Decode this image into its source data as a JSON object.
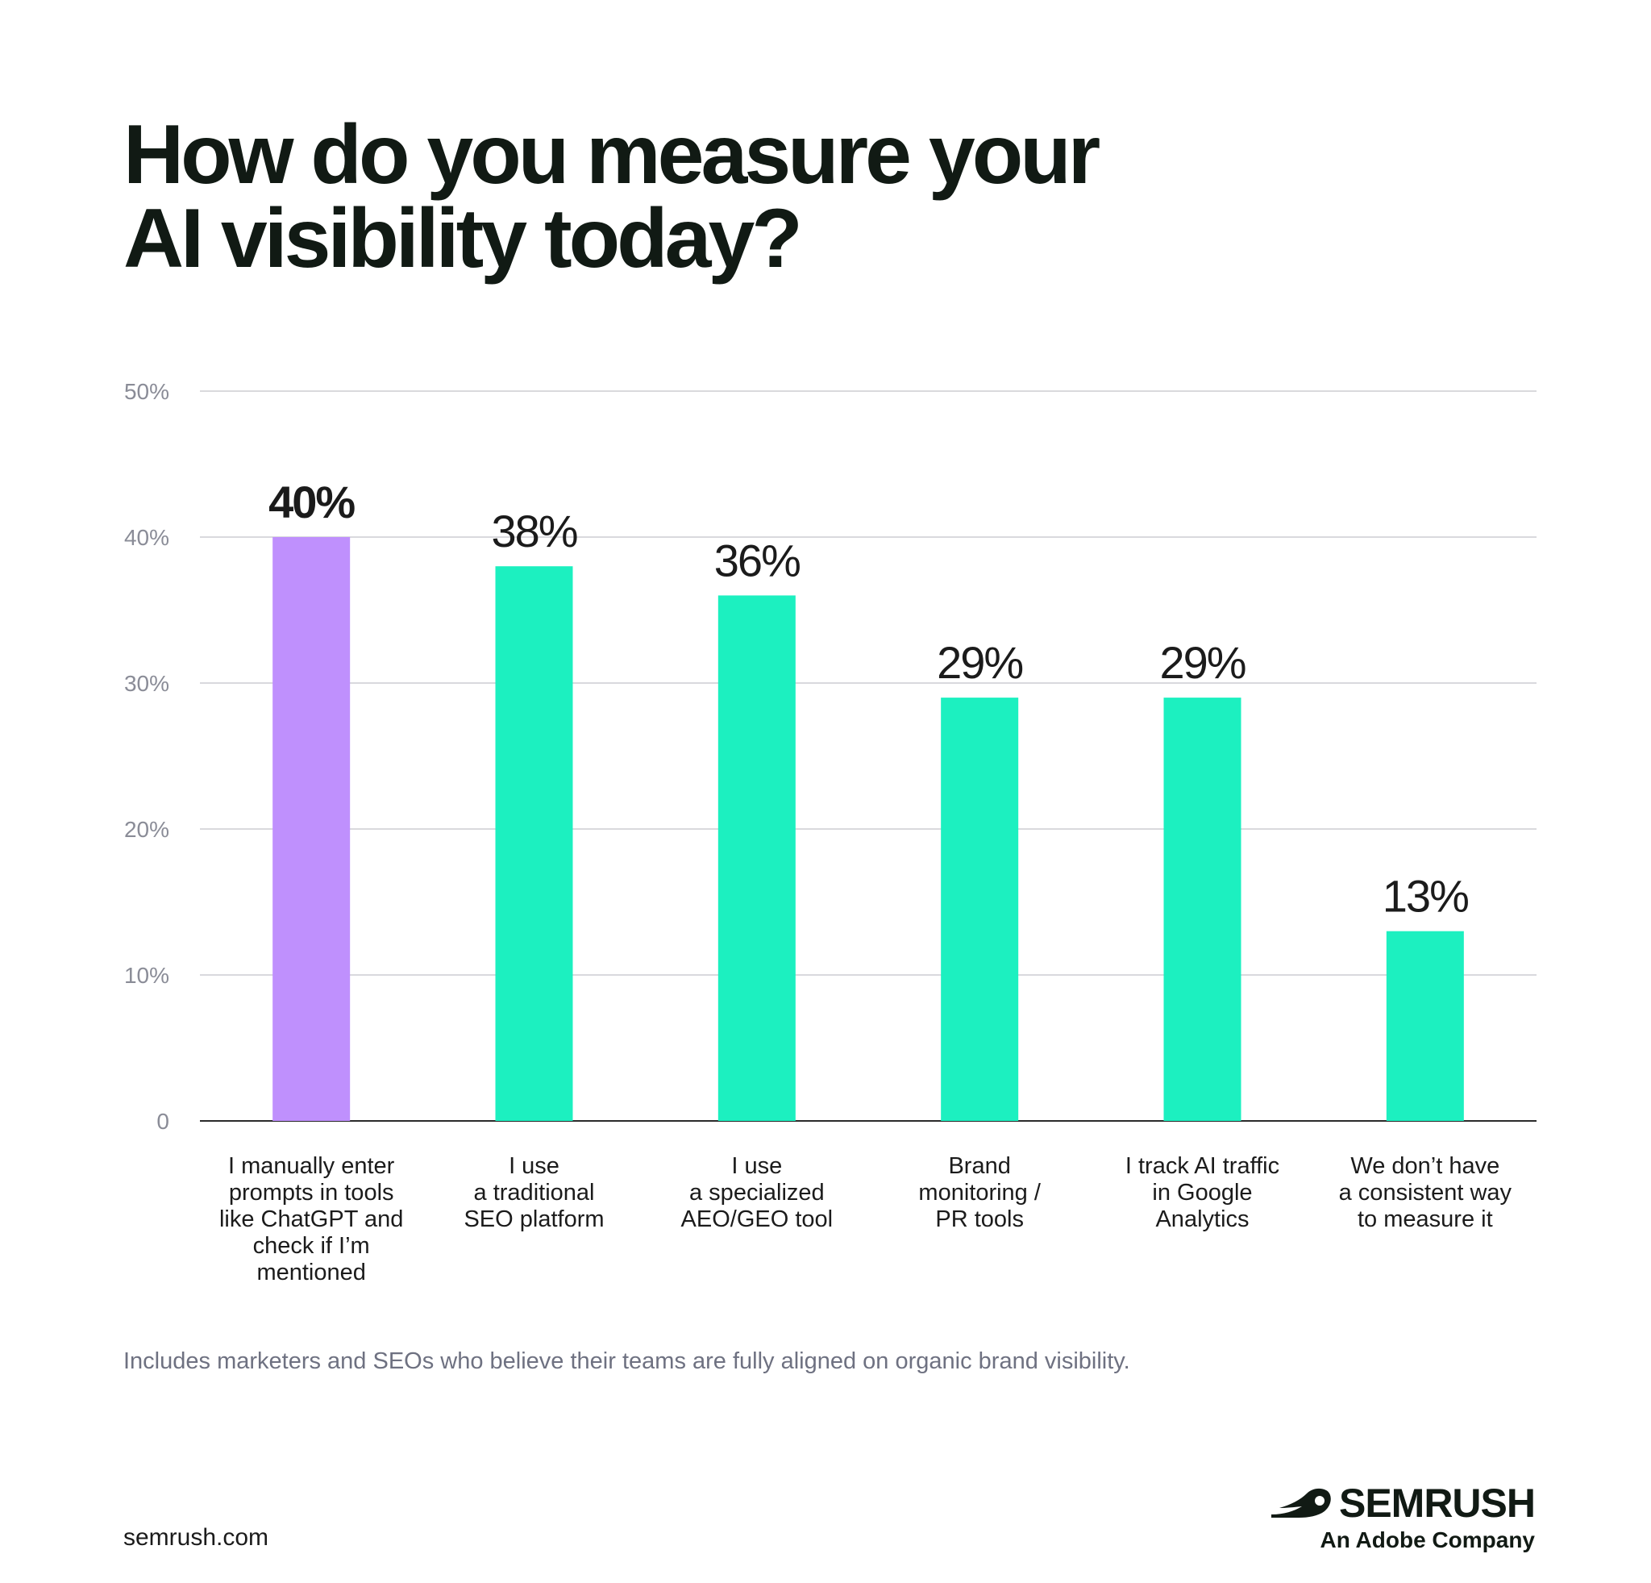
{
  "title_lines": [
    "How do you measure your",
    "AI visibility today?"
  ],
  "footnote": "Includes marketers and SEOs who believe their teams are fully aligned on organic brand visibility.",
  "site": "semrush.com",
  "brand": {
    "name": "SEMRUSH",
    "tagline": "An Adobe Company",
    "icon": "semrush-fire-icon"
  },
  "colors": {
    "highlight": "#bf90fd",
    "bar": "#1cf0c0",
    "grid": "#d9d9dd",
    "axis": "#2a2a2a",
    "tick": "#8a8c97"
  },
  "chart_data": {
    "type": "bar",
    "categories": [
      "I manually enter prompts in tools like ChatGPT and check if I’m mentioned",
      "I use a traditional SEO platform",
      "I use a specialized AEO/GEO tool",
      "Brand monitoring / PR tools",
      "I track AI traffic in Google Analytics",
      "We don’t have a consistent way to measure it"
    ],
    "category_lines": [
      [
        "I manually enter",
        "prompts in tools",
        "like ChatGPT and",
        "check if I’m",
        "mentioned"
      ],
      [
        "I use",
        "a traditional",
        "SEO platform"
      ],
      [
        "I use",
        "a specialized",
        "AEO/GEO tool"
      ],
      [
        "Brand",
        "monitoring /",
        "PR tools"
      ],
      [
        "I track AI traffic",
        "in Google",
        "Analytics"
      ],
      [
        "We don’t have",
        "a consistent way",
        "to measure it"
      ]
    ],
    "values": [
      40,
      38,
      36,
      29,
      29,
      13
    ],
    "value_labels": [
      "40%",
      "38%",
      "36%",
      "29%",
      "29%",
      "13%"
    ],
    "highlight_index": 0,
    "yticks": [
      0,
      10,
      20,
      30,
      40,
      50
    ],
    "ytick_labels": [
      "0",
      "10%",
      "20%",
      "30%",
      "40%",
      "50%"
    ],
    "ylim": [
      0,
      50
    ],
    "grid": true,
    "legend": "none"
  }
}
